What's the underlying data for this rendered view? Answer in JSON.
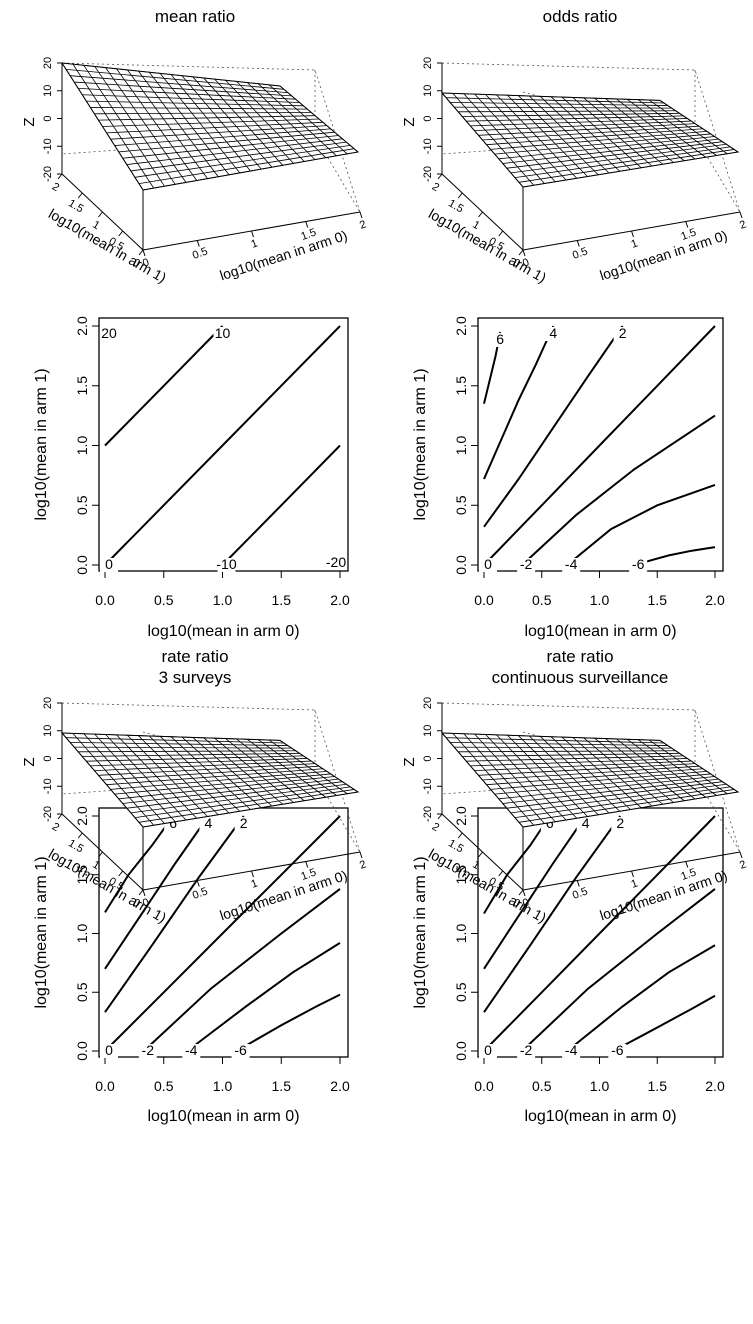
{
  "panels": [
    {
      "title": "mean ratio",
      "title2": "",
      "z_label": "Z",
      "z_ticks": [
        "20",
        "10",
        "0",
        "-10",
        "-20"
      ],
      "x_label": "log10(mean in arm 0)",
      "y_label": "log10(mean in arm 1)",
      "x3d_ticks": [
        "0",
        "0.5",
        "1",
        "1.5",
        "2"
      ],
      "y3d_ticks": [
        "2",
        "1.5",
        "1",
        "0.5",
        "0"
      ]
    },
    {
      "title": "odds ratio",
      "title2": "",
      "z_label": "Z",
      "z_ticks": [
        "20",
        "10",
        "0",
        "-10",
        "-20"
      ],
      "x_label": "log10(mean in arm 0)",
      "y_label": "log10(mean in arm 1)",
      "x3d_ticks": [
        "0",
        "0.5",
        "1",
        "1.5",
        "2"
      ],
      "y3d_ticks": [
        "2",
        "1.5",
        "1",
        "0.5",
        "0"
      ]
    },
    {
      "title": "rate ratio",
      "title2": "3 surveys",
      "z_label": "Z",
      "z_ticks": [
        "20",
        "10",
        "0",
        "-10",
        "-20"
      ],
      "x_label": "log10(mean in arm 0)",
      "y_label": "log10(mean in arm 1)",
      "x3d_ticks": [
        "0",
        "0.5",
        "1",
        "1.5",
        "2"
      ],
      "y3d_ticks": [
        "2",
        "1.5",
        "1",
        "0.5",
        "0"
      ]
    },
    {
      "title": "rate ratio",
      "title2": "continuous surveillance",
      "z_label": "Z",
      "z_ticks": [
        "20",
        "10",
        "0",
        "-10",
        "-20"
      ],
      "x_label": "log10(mean in arm 0)",
      "y_label": "log10(mean in arm 1)",
      "x3d_ticks": [
        "0",
        "0.5",
        "1",
        "1.5",
        "2"
      ],
      "y3d_ticks": [
        "2",
        "1.5",
        "1",
        "0.5",
        "0"
      ]
    }
  ],
  "chart_data": [
    {
      "type": "line",
      "title": "mean ratio",
      "xlabel": "log10(mean in arm 0)",
      "ylabel": "log10(mean in arm 1)",
      "xlim": [
        0,
        2
      ],
      "ylim": [
        0,
        2
      ],
      "xticks": [
        "0.0",
        "0.5",
        "1.0",
        "1.5",
        "2.0"
      ],
      "yticks": [
        "0.0",
        "0.5",
        "1.0",
        "1.5",
        "2.0"
      ],
      "series": [
        {
          "label": "20",
          "x": [
            0.0
          ],
          "y": [
            2.0
          ]
        },
        {
          "label": "10",
          "x": [
            0.0,
            0.5,
            1.0
          ],
          "y": [
            1.0,
            1.5,
            2.0
          ]
        },
        {
          "label": "0",
          "x": [
            0.0,
            1.0,
            2.0
          ],
          "y": [
            0.0,
            1.0,
            2.0
          ]
        },
        {
          "label": "-10",
          "x": [
            1.0,
            1.5,
            2.0
          ],
          "y": [
            0.0,
            0.5,
            1.0
          ]
        },
        {
          "label": "-20",
          "x": [
            2.0
          ],
          "y": [
            0.0
          ]
        }
      ]
    },
    {
      "type": "line",
      "title": "odds ratio",
      "xlabel": "log10(mean in arm 0)",
      "ylabel": "log10(mean in arm 1)",
      "xlim": [
        0,
        2
      ],
      "ylim": [
        0,
        2
      ],
      "xticks": [
        "0.0",
        "0.5",
        "1.0",
        "1.5",
        "2.0"
      ],
      "yticks": [
        "0.0",
        "0.5",
        "1.0",
        "1.5",
        "2.0"
      ],
      "series": [
        {
          "label": "6",
          "x": [
            0.0,
            0.05,
            0.1,
            0.14
          ],
          "y": [
            1.35,
            1.55,
            1.75,
            1.95
          ]
        },
        {
          "label": "4",
          "x": [
            0.0,
            0.15,
            0.3,
            0.45,
            0.6
          ],
          "y": [
            0.72,
            1.05,
            1.38,
            1.68,
            2.0
          ]
        },
        {
          "label": "2",
          "x": [
            0.0,
            0.3,
            0.6,
            0.9,
            1.2
          ],
          "y": [
            0.32,
            0.72,
            1.15,
            1.58,
            2.0
          ]
        },
        {
          "label": "0",
          "x": [
            0.0,
            0.5,
            1.0,
            1.5,
            2.0
          ],
          "y": [
            0.0,
            0.5,
            1.0,
            1.5,
            2.0
          ]
        },
        {
          "label": "-2",
          "x": [
            0.33,
            0.8,
            1.3,
            2.0
          ],
          "y": [
            0.0,
            0.42,
            0.8,
            1.25
          ]
        },
        {
          "label": "-4",
          "x": [
            0.72,
            1.1,
            1.5,
            2.0
          ],
          "y": [
            0.0,
            0.3,
            0.5,
            0.67
          ]
        },
        {
          "label": "-6",
          "x": [
            1.3,
            1.6,
            1.8,
            2.0
          ],
          "y": [
            0.0,
            0.08,
            0.12,
            0.15
          ]
        }
      ]
    },
    {
      "type": "line",
      "title": "rate ratio 3 surveys",
      "xlabel": "log10(mean in arm 0)",
      "ylabel": "log10(mean in arm 1)",
      "xlim": [
        0,
        2
      ],
      "ylim": [
        0,
        2
      ],
      "xticks": [
        "0.0",
        "0.5",
        "1.0",
        "1.5",
        "2.0"
      ],
      "yticks": [
        "0.0",
        "0.5",
        "1.0",
        "1.5",
        "2.0"
      ],
      "series": [
        {
          "label": "6",
          "x": [
            0.0,
            0.2,
            0.4,
            0.58
          ],
          "y": [
            1.18,
            1.5,
            1.75,
            2.0
          ]
        },
        {
          "label": "4",
          "x": [
            0.0,
            0.3,
            0.6,
            0.88
          ],
          "y": [
            0.7,
            1.15,
            1.6,
            2.0
          ]
        },
        {
          "label": "2",
          "x": [
            0.0,
            0.4,
            0.8,
            1.18
          ],
          "y": [
            0.33,
            0.9,
            1.48,
            2.0
          ]
        },
        {
          "label": "0",
          "x": [
            0.0,
            0.5,
            1.0,
            1.5,
            2.0
          ],
          "y": [
            0.0,
            0.5,
            1.0,
            1.5,
            2.0
          ]
        },
        {
          "label": "-2",
          "x": [
            0.33,
            0.9,
            1.5,
            2.0
          ],
          "y": [
            0.0,
            0.53,
            1.0,
            1.38
          ]
        },
        {
          "label": "-4",
          "x": [
            0.7,
            1.2,
            1.6,
            2.0
          ],
          "y": [
            0.0,
            0.38,
            0.67,
            0.92
          ]
        },
        {
          "label": "-6",
          "x": [
            1.12,
            1.5,
            1.8,
            2.0
          ],
          "y": [
            0.0,
            0.22,
            0.38,
            0.48
          ]
        }
      ]
    },
    {
      "type": "line",
      "title": "rate ratio continuous surveillance",
      "xlabel": "log10(mean in arm 0)",
      "ylabel": "log10(mean in arm 1)",
      "xlim": [
        0,
        2
      ],
      "ylim": [
        0,
        2
      ],
      "xticks": [
        "0.0",
        "0.5",
        "1.0",
        "1.5",
        "2.0"
      ],
      "yticks": [
        "0.0",
        "0.5",
        "1.0",
        "1.5",
        "2.0"
      ],
      "series": [
        {
          "label": "6",
          "x": [
            0.0,
            0.2,
            0.4,
            0.57
          ],
          "y": [
            1.17,
            1.5,
            1.75,
            2.0
          ]
        },
        {
          "label": "4",
          "x": [
            0.0,
            0.3,
            0.6,
            0.88
          ],
          "y": [
            0.7,
            1.15,
            1.6,
            2.0
          ]
        },
        {
          "label": "2",
          "x": [
            0.0,
            0.4,
            0.8,
            1.18
          ],
          "y": [
            0.33,
            0.9,
            1.48,
            2.0
          ]
        },
        {
          "label": "0",
          "x": [
            0.0,
            0.5,
            1.0,
            1.5,
            2.0
          ],
          "y": [
            0.0,
            0.5,
            1.0,
            1.5,
            2.0
          ]
        },
        {
          "label": "-2",
          "x": [
            0.33,
            0.9,
            1.5,
            2.0
          ],
          "y": [
            0.0,
            0.53,
            1.0,
            1.38
          ]
        },
        {
          "label": "-4",
          "x": [
            0.72,
            1.2,
            1.6,
            2.0
          ],
          "y": [
            0.0,
            0.38,
            0.67,
            0.9
          ]
        },
        {
          "label": "-6",
          "x": [
            1.12,
            1.5,
            1.8,
            2.0
          ],
          "y": [
            0.0,
            0.2,
            0.36,
            0.47
          ]
        }
      ]
    }
  ]
}
